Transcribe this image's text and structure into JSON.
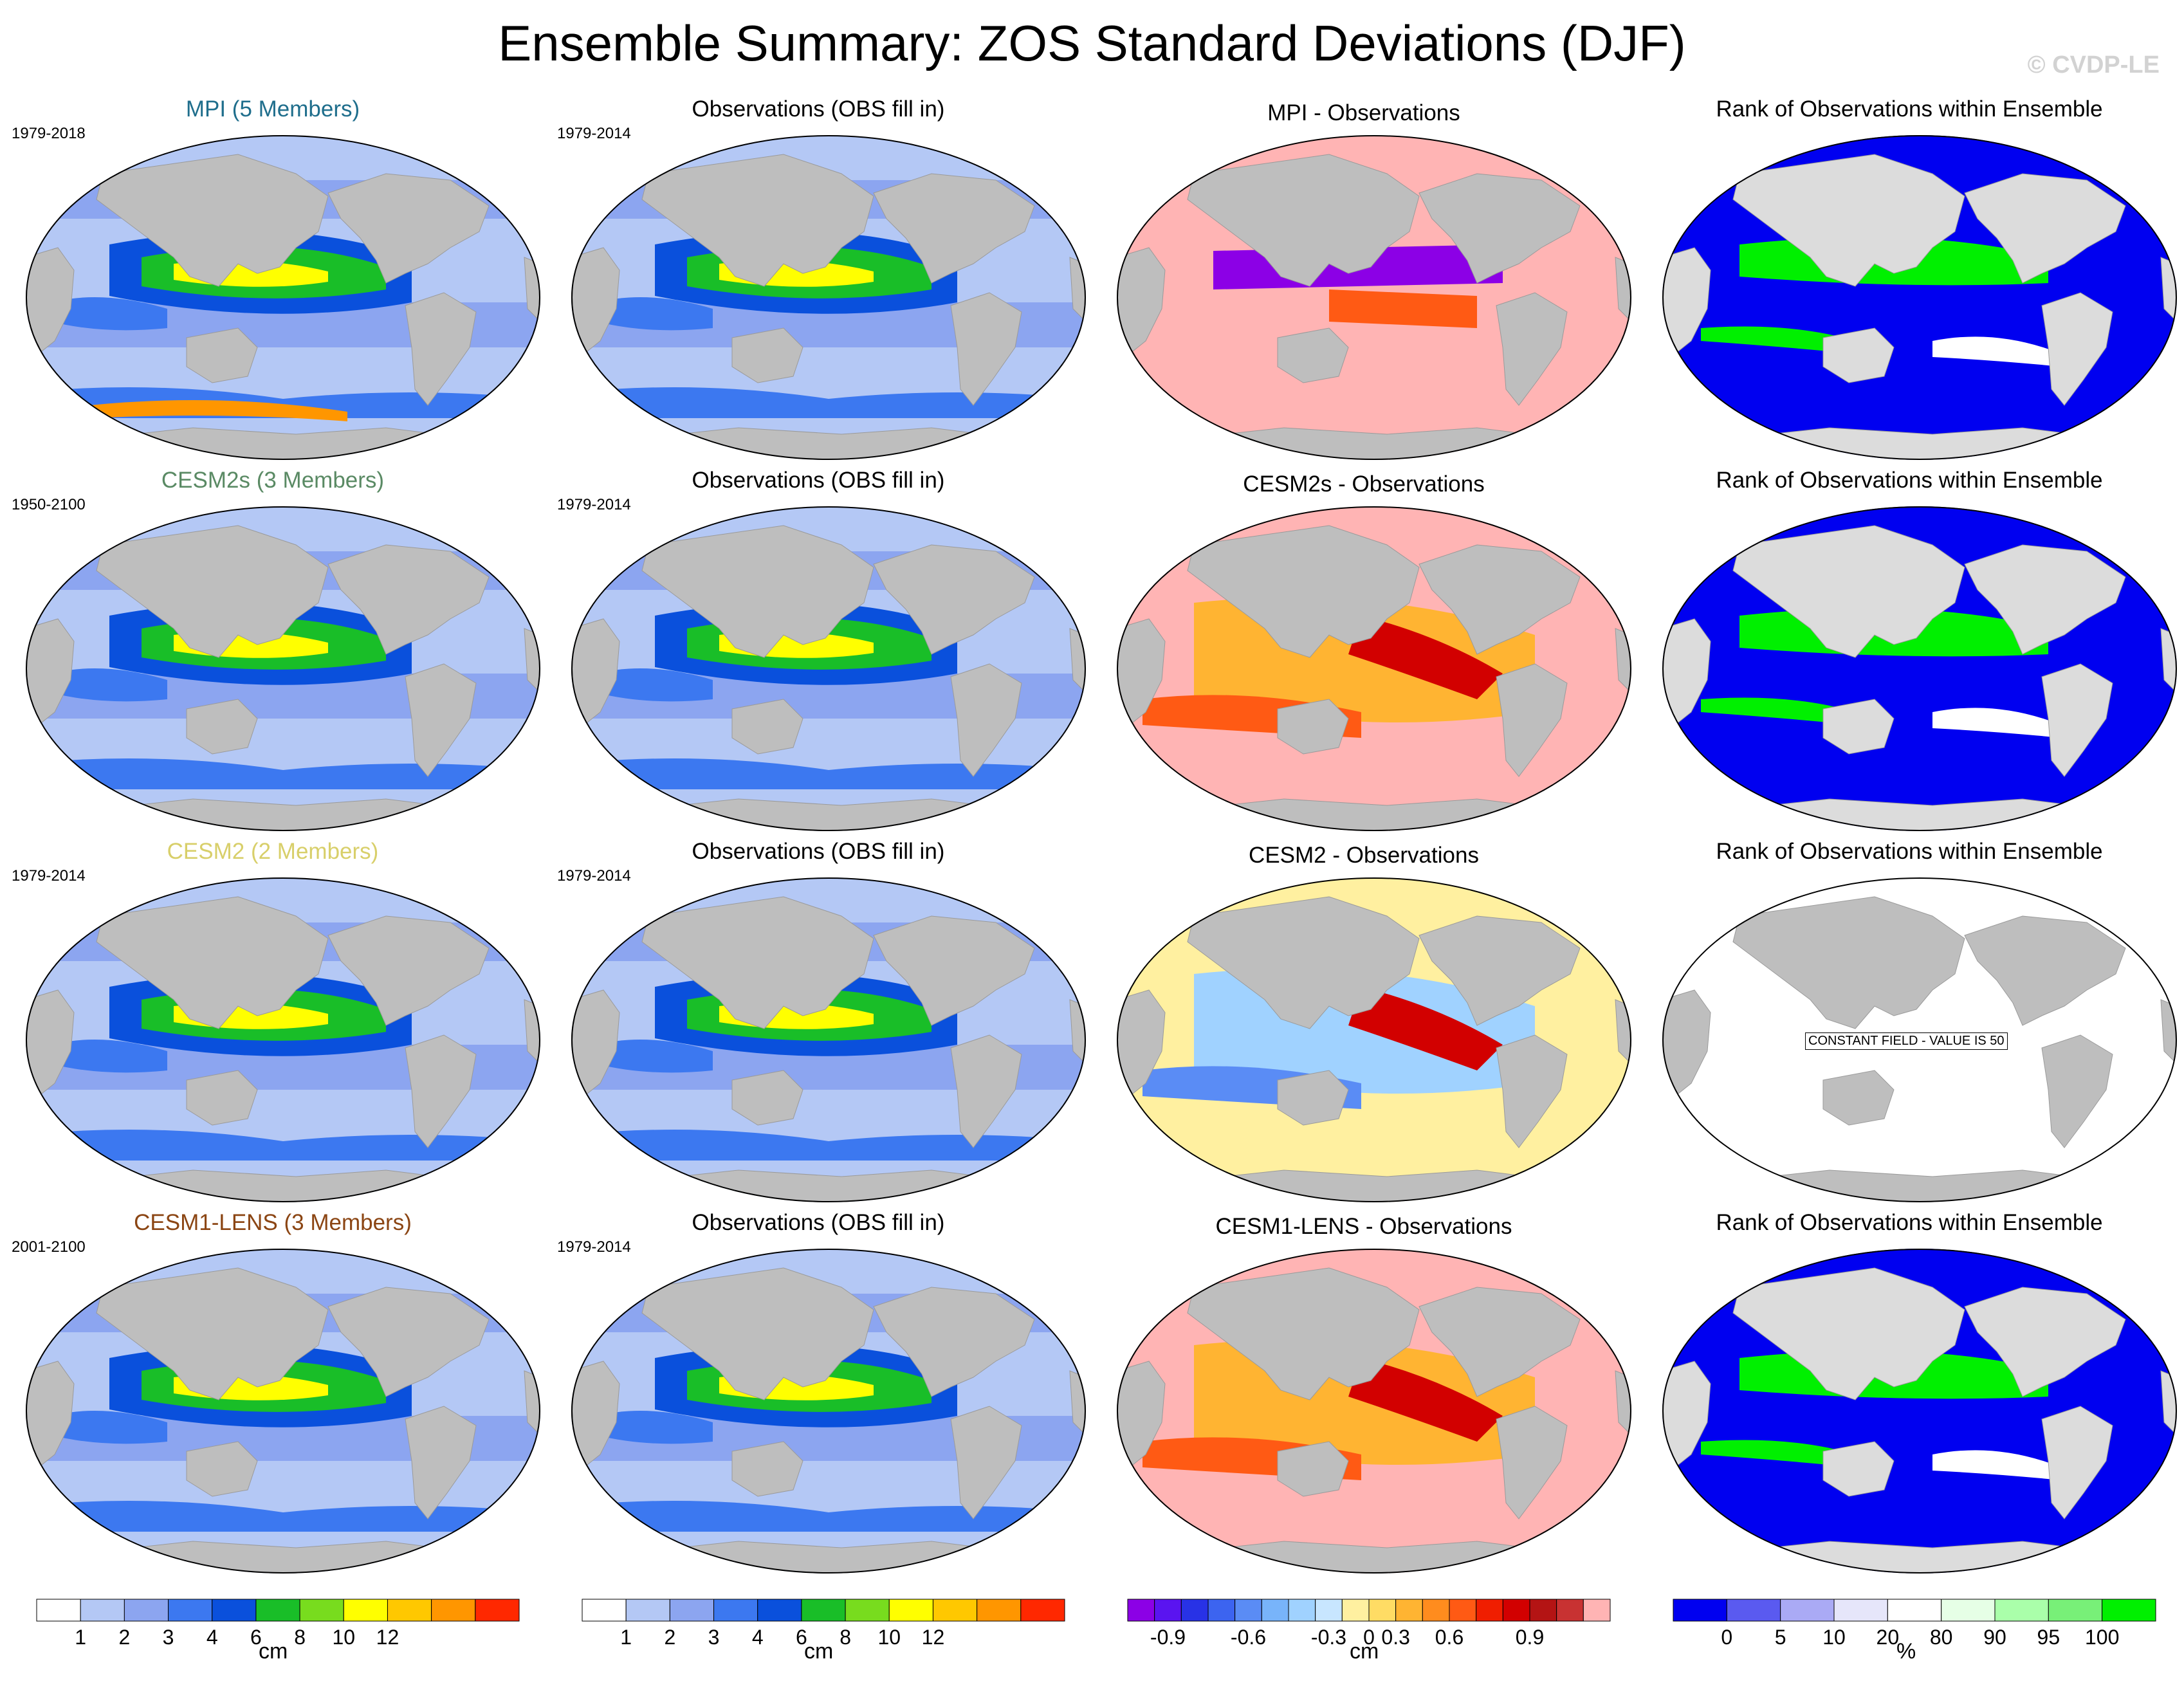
{
  "title": "Ensemble Summary: ZOS Standard Deviations (DJF)",
  "watermark": "© CVDP-LE",
  "rows": [
    {
      "model_title": "MPI (5 Members)",
      "model_color": "#1f6e8c",
      "model_period": "1979-2018",
      "obs_title": "Observations (OBS fill in)",
      "obs_period": "1979-2014",
      "diff_title": "MPI - Observations",
      "rank_title": "Rank of Observations within Ensemble",
      "rank_note": ""
    },
    {
      "model_title": "CESM2s (3 Members)",
      "model_color": "#5a8a64",
      "model_period": "1950-2100",
      "obs_title": "Observations (OBS fill in)",
      "obs_period": "1979-2014",
      "diff_title": "CESM2s - Observations",
      "rank_title": "Rank of Observations within Ensemble",
      "rank_note": ""
    },
    {
      "model_title": "CESM2 (2 Members)",
      "model_color": "#d8cf6a",
      "model_period": "1979-2014",
      "obs_title": "Observations (OBS fill in)",
      "obs_period": "1979-2014",
      "diff_title": "CESM2 - Observations",
      "rank_title": "Rank of Observations within Ensemble",
      "rank_note": "CONSTANT FIELD - VALUE IS 50"
    },
    {
      "model_title": "CESM1-LENS (3 Members)",
      "model_color": "#8b4513",
      "model_period": "2001-2100",
      "obs_title": "Observations (OBS fill in)",
      "obs_period": "1979-2014",
      "diff_title": "CESM1-LENS - Observations",
      "rank_title": "Rank of Observations within Ensemble",
      "rank_note": ""
    }
  ],
  "colorbars": {
    "std": {
      "unit": "cm",
      "boundaries": [
        0,
        1,
        2,
        3,
        4,
        6,
        8,
        10,
        12,
        14
      ],
      "labels": [
        "1",
        "2",
        "3",
        "4",
        "6",
        "8",
        "10",
        "12"
      ],
      "colors": [
        "#ffffff",
        "#b4c8f5",
        "#8ca5f0",
        "#3c78f0",
        "#0a50dc",
        "#19be28",
        "#78dc1e",
        "#ffff00",
        "#ffc800",
        "#ff9600",
        "#ff2800"
      ]
    },
    "diff": {
      "unit": "cm",
      "labels": [
        "-0.9",
        "-0.6",
        "-0.3",
        "0",
        "0.3",
        "0.6",
        "0.9"
      ],
      "colors": [
        "#8c00e6",
        "#5a14f0",
        "#2832e6",
        "#3c64f0",
        "#5a8cf5",
        "#78b4fa",
        "#a0d2ff",
        "#c8e6ff",
        "#fff0a0",
        "#ffdc64",
        "#ffb432",
        "#ff8c1e",
        "#ff5a14",
        "#f01e00",
        "#d20000",
        "#b41414",
        "#c83232",
        "#ffb4b4"
      ]
    },
    "rank": {
      "unit": "%",
      "labels": [
        "0",
        "5",
        "10",
        "20",
        "80",
        "90",
        "95",
        "100"
      ],
      "colors": [
        "#0000f0",
        "#5a5af0",
        "#aaaaf5",
        "#e6e6fa",
        "#ffffff",
        "#e6ffe6",
        "#aaffaa",
        "#78f078",
        "#00f000"
      ]
    }
  }
}
